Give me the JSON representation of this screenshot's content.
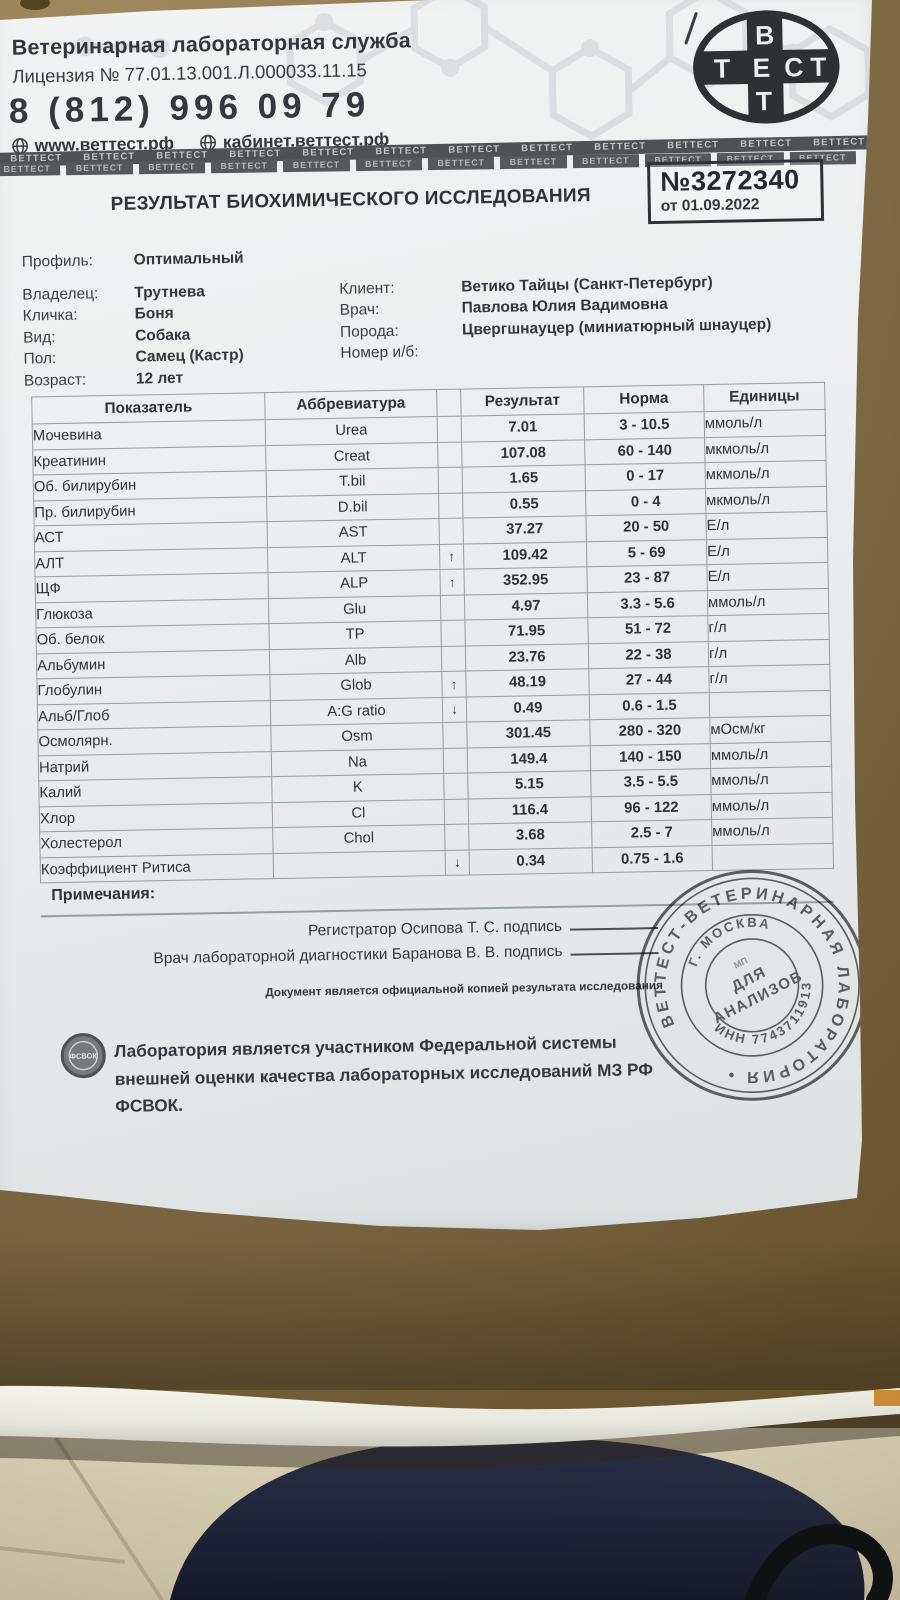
{
  "header": {
    "org_name": "Ветеринарная лабораторная служба",
    "license": "Лицензия № 77.01.13.001.Л.000033.11.15",
    "phone": "8 (812) 996 09 79",
    "site_main": "www.веттест.рф",
    "site_cabinet": "кабинет.веттест.рф",
    "strip_word": "ВЕТТЕСТ",
    "strip_count": 12,
    "logo": {
      "top": "В",
      "cross_left": "Т",
      "cross_center": "Е",
      "cross_c": "С",
      "cross_right": "Т",
      "bottom": "Т"
    }
  },
  "report": {
    "title": "РЕЗУЛЬТАТ БИОХИМИЧЕСКОГО ИССЛЕДОВАНИЯ",
    "number": "№3272340",
    "date": "от 01.09.2022"
  },
  "patient": {
    "left": [
      {
        "label": "Профиль:",
        "value": "Оптимальный"
      },
      {
        "label": "Владелец:",
        "value": "Трутнева"
      },
      {
        "label": "Кличка:",
        "value": "Боня"
      },
      {
        "label": "Вид:",
        "value": "Собака"
      },
      {
        "label": "Пол:",
        "value": "Самец (Кастр)"
      },
      {
        "label": "Возраст:",
        "value": "12 лет"
      }
    ],
    "right": [
      {
        "label": "Клиент:",
        "value": "Ветико Тайцы (Санкт-Петербург)"
      },
      {
        "label": "Врач:",
        "value": "Павлова Юлия Вадимовна"
      },
      {
        "label": "Порода:",
        "value": "Цвергшнауцер (миниатюрный шнауцер)"
      },
      {
        "label": "Номер и/б:",
        "value": ""
      }
    ]
  },
  "table": {
    "headers": [
      "Показатель",
      "Аббревиатура",
      "",
      "Результат",
      "Норма",
      "Единицы"
    ],
    "rows": [
      {
        "name": "Мочевина",
        "abbr": "Urea",
        "flag": "",
        "result": "7.01",
        "norm": "3 - 10.5",
        "units": "ммоль/л"
      },
      {
        "name": "Креатинин",
        "abbr": "Creat",
        "flag": "",
        "result": "107.08",
        "norm": "60 - 140",
        "units": "мкмоль/л"
      },
      {
        "name": "Об. билирубин",
        "abbr": "T.bil",
        "flag": "",
        "result": "1.65",
        "norm": "0 - 17",
        "units": "мкмоль/л"
      },
      {
        "name": "Пр. билирубин",
        "abbr": "D.bil",
        "flag": "",
        "result": "0.55",
        "norm": "0 - 4",
        "units": "мкмоль/л"
      },
      {
        "name": "АСТ",
        "abbr": "AST",
        "flag": "",
        "result": "37.27",
        "norm": "20 - 50",
        "units": "Е/л"
      },
      {
        "name": "АЛТ",
        "abbr": "ALT",
        "flag": "↑",
        "result": "109.42",
        "norm": "5 - 69",
        "units": "Е/л"
      },
      {
        "name": "ЩФ",
        "abbr": "ALP",
        "flag": "↑",
        "result": "352.95",
        "norm": "23 - 87",
        "units": "Е/л"
      },
      {
        "name": "Глюкоза",
        "abbr": "Glu",
        "flag": "",
        "result": "4.97",
        "norm": "3.3 - 5.6",
        "units": "ммоль/л"
      },
      {
        "name": "Об. белок",
        "abbr": "TP",
        "flag": "",
        "result": "71.95",
        "norm": "51 - 72",
        "units": "г/л"
      },
      {
        "name": "Альбумин",
        "abbr": "Alb",
        "flag": "",
        "result": "23.76",
        "norm": "22 - 38",
        "units": "г/л"
      },
      {
        "name": "Глобулин",
        "abbr": "Glob",
        "flag": "↑",
        "result": "48.19",
        "norm": "27 - 44",
        "units": "г/л"
      },
      {
        "name": "Альб/Глоб",
        "abbr": "A:G ratio",
        "flag": "↓",
        "result": "0.49",
        "norm": "0.6 - 1.5",
        "units": ""
      },
      {
        "name": "Осмолярн.",
        "abbr": "Osm",
        "flag": "",
        "result": "301.45",
        "norm": "280 - 320",
        "units": "мОсм/кг"
      },
      {
        "name": "Натрий",
        "abbr": "Na",
        "flag": "",
        "result": "149.4",
        "norm": "140 - 150",
        "units": "ммоль/л"
      },
      {
        "name": "Калий",
        "abbr": "K",
        "flag": "",
        "result": "5.15",
        "norm": "3.5 - 5.5",
        "units": "ммоль/л"
      },
      {
        "name": "Хлор",
        "abbr": "Cl",
        "flag": "",
        "result": "116.4",
        "norm": "96 - 122",
        "units": "ммоль/л"
      },
      {
        "name": "Холестерол",
        "abbr": "Chol",
        "flag": "",
        "result": "3.68",
        "norm": "2.5 - 7",
        "units": "ммоль/л"
      },
      {
        "name": "Коэффициент Ритиса",
        "abbr": "",
        "flag": "↓",
        "result": "0.34",
        "norm": "0.75 - 1.6",
        "units": ""
      }
    ]
  },
  "notes_label": "Примечания:",
  "signatures": {
    "registrar": "Регистратор Осипова Т. С. подпись",
    "doctor": "Врач лабораторной диагностики Баранова В. В. подпись",
    "official_copy": "Документ является официальной копией результата исследования"
  },
  "footer": {
    "emblem": "ФСВОК",
    "quality_statement": "Лаборатория является участником Федеральной системы внешней оценки качества лабораторных исследований МЗ РФ ФСВОК."
  },
  "stamp": {
    "outer_ring": "ВЕТТЕСТ-ВЕТЕРИНАРНАЯ ЛАБОРАТОРИЯ • ",
    "inner_top": "Г. МОСКВА",
    "inner_bottom": "ИНН 7743711913",
    "center_small": "МП",
    "center_line1": "ДЛЯ",
    "center_line2": "АНАЛИЗОВ"
  },
  "colors": {
    "paper": "#edf0f0",
    "ink": "#32363b",
    "table_border": "#969da4",
    "strip_bar": "#4f5154",
    "chair": "#85714a",
    "floor_tile": "#d3c9ad",
    "fabric_navy": "#222738",
    "stamp_ink": "#44484d"
  }
}
